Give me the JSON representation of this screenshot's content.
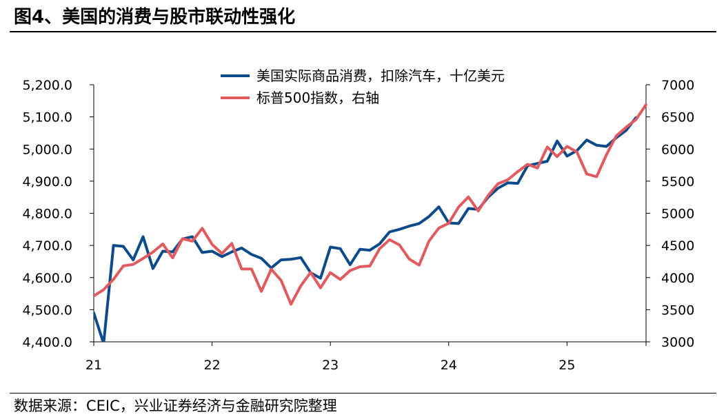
{
  "figure": {
    "title": "图4、美国的消费与股市联动性强化",
    "source": "数据来源：CEIC，兴业证券经济与金融研究院整理"
  },
  "colors": {
    "consumption": "#0d4a8c",
    "sp500": "#e05a5e"
  },
  "chart_data": {
    "type": "line",
    "title": "",
    "xlabel": "",
    "ylabel_left": "",
    "ylabel_right": "",
    "x_tick_labels": [
      "21",
      "22",
      "23",
      "24",
      "25"
    ],
    "left_axis": {
      "range": [
        4400,
        5200
      ],
      "ticks": [
        4400,
        4500,
        4600,
        4700,
        4800,
        4900,
        5000,
        5100,
        5200
      ],
      "tick_labels": [
        "4,400.0",
        "4,500.0",
        "4,600.0",
        "4,700.0",
        "4,800.0",
        "4,900.0",
        "5,000.0",
        "5,100.0",
        "5,200.0"
      ]
    },
    "right_axis": {
      "range": [
        3000,
        7000
      ],
      "ticks": [
        3000,
        3500,
        4000,
        4500,
        5000,
        5500,
        6000,
        6500,
        7000
      ],
      "tick_labels": [
        "3000",
        "3500",
        "4000",
        "4500",
        "5000",
        "5500",
        "6000",
        "6500",
        "7000"
      ]
    },
    "legend_position": "top-center",
    "series": [
      {
        "name": "美国实际商品消费，扣除汽车，十亿美元",
        "axis": "left",
        "start": "2021-01",
        "values": [
          4490,
          4395,
          4700,
          4697,
          4655,
          4727,
          4628,
          4682,
          4680,
          4720,
          4727,
          4678,
          4682,
          4665,
          4680,
          4692,
          4672,
          4660,
          4630,
          4655,
          4657,
          4662,
          4615,
          4598,
          4695,
          4690,
          4640,
          4688,
          4685,
          4705,
          4742,
          4750,
          4760,
          4768,
          4790,
          4820,
          4770,
          4768,
          4815,
          4812,
          4850,
          4878,
          4895,
          4893,
          4948,
          4955,
          4962,
          5025,
          4978,
          4995,
          5028,
          5012,
          5008,
          5035,
          5058,
          5098
        ]
      },
      {
        "name": "标普500指数，右轴",
        "axis": "right",
        "start": "2021-01",
        "values": [
          3714,
          3811,
          3973,
          4181,
          4204,
          4298,
          4395,
          4523,
          4307,
          4605,
          4567,
          4766,
          4516,
          4374,
          4530,
          4132,
          4132,
          3785,
          4130,
          3955,
          3586,
          3872,
          4080,
          3840,
          4077,
          3970,
          4109,
          4169,
          4180,
          4450,
          4589,
          4508,
          4288,
          4194,
          4568,
          4770,
          4846,
          5096,
          5254,
          5036,
          5278,
          5460,
          5522,
          5648,
          5762,
          5705,
          6032,
          5882,
          6041,
          5955,
          5612,
          5569,
          5912,
          6205,
          6339,
          6460,
          6688
        ]
      }
    ]
  }
}
